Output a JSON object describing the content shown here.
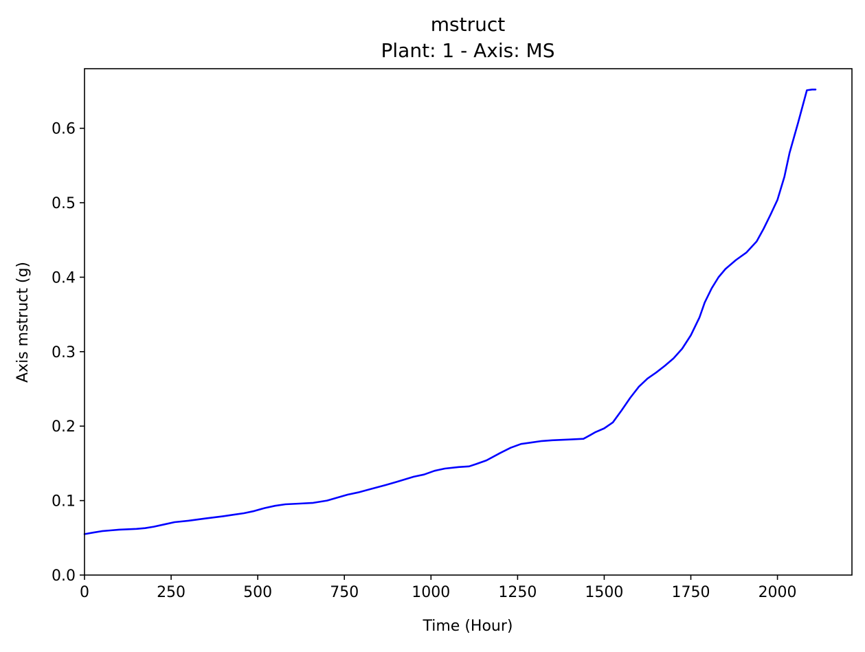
{
  "chart_data": {
    "type": "line",
    "title": "mstruct",
    "subtitle": "Plant: 1 - Axis: MS",
    "xlabel": "Time (Hour)",
    "ylabel": "Axis mstruct (g)",
    "xlim": [
      0,
      2215
    ],
    "ylim": [
      0,
      0.68
    ],
    "x_ticks": [
      0,
      250,
      500,
      750,
      1000,
      1250,
      1500,
      1750,
      2000
    ],
    "y_ticks": [
      0.0,
      0.1,
      0.2,
      0.3,
      0.4,
      0.5,
      0.6
    ],
    "x_tick_labels": [
      "0",
      "250",
      "500",
      "750",
      "1000",
      "1250",
      "1500",
      "1750",
      "2000"
    ],
    "y_tick_labels": [
      "0.0",
      "0.1",
      "0.2",
      "0.3",
      "0.4",
      "0.5",
      "0.6"
    ],
    "grid": false,
    "legend": "none",
    "line_color": "#0000ff",
    "series": [
      {
        "x": [
          0,
          25,
          50,
          75,
          100,
          150,
          175,
          200,
          230,
          260,
          300,
          350,
          400,
          430,
          460,
          490,
          520,
          550,
          580,
          620,
          660,
          700,
          730,
          760,
          790,
          830,
          870,
          900,
          950,
          980,
          1010,
          1040,
          1080,
          1110,
          1130,
          1160,
          1200,
          1230,
          1260,
          1290,
          1320,
          1350,
          1400,
          1440,
          1460,
          1475,
          1500,
          1525,
          1550,
          1575,
          1600,
          1625,
          1650,
          1675,
          1700,
          1725,
          1750,
          1775,
          1790,
          1810,
          1830,
          1850,
          1880,
          1910,
          1940,
          1960,
          1980,
          2000,
          2020,
          2035,
          2060,
          2085,
          2100,
          2110
        ],
        "y": [
          0.055,
          0.057,
          0.059,
          0.06,
          0.061,
          0.062,
          0.063,
          0.065,
          0.068,
          0.071,
          0.073,
          0.076,
          0.079,
          0.081,
          0.083,
          0.086,
          0.09,
          0.093,
          0.095,
          0.096,
          0.097,
          0.1,
          0.104,
          0.108,
          0.111,
          0.116,
          0.121,
          0.125,
          0.132,
          0.135,
          0.14,
          0.143,
          0.145,
          0.146,
          0.149,
          0.154,
          0.164,
          0.171,
          0.176,
          0.178,
          0.18,
          0.181,
          0.182,
          0.183,
          0.188,
          0.192,
          0.197,
          0.205,
          0.221,
          0.238,
          0.253,
          0.264,
          0.272,
          0.281,
          0.291,
          0.304,
          0.322,
          0.346,
          0.366,
          0.385,
          0.4,
          0.411,
          0.423,
          0.433,
          0.448,
          0.465,
          0.484,
          0.504,
          0.535,
          0.567,
          0.608,
          0.651,
          0.652,
          0.652
        ]
      }
    ]
  }
}
